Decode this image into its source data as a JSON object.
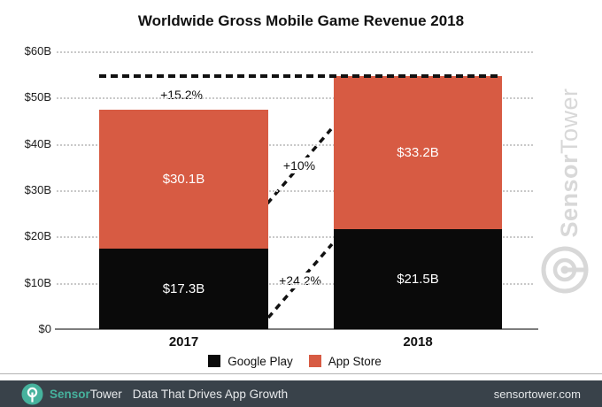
{
  "title": "Worldwide Gross Mobile Game Revenue 2018",
  "chart_data": {
    "type": "bar",
    "stacked": true,
    "title": "Worldwide Gross Mobile Game Revenue 2018",
    "categories": [
      "2017",
      "2018"
    ],
    "series": [
      {
        "name": "Google Play",
        "color": "#0a0a0a",
        "values": [
          17.3,
          21.5
        ],
        "labels": [
          "$17.3B",
          "$21.5B"
        ]
      },
      {
        "name": "App Store",
        "color": "#d75b43",
        "values": [
          30.1,
          33.2
        ],
        "labels": [
          "$30.1B",
          "$33.2B"
        ]
      }
    ],
    "totals": [
      47.4,
      54.7
    ],
    "ylim": [
      0,
      60
    ],
    "ytick_values": [
      0,
      10,
      20,
      30,
      40,
      50,
      60
    ],
    "ytick_labels": [
      "$0",
      "$10B",
      "$20B",
      "$30B",
      "$40B",
      "$50B",
      "$60B"
    ],
    "grid": "dotted horizontal",
    "reference_line": {
      "value": 54.7,
      "style": "dashed"
    },
    "annotations": [
      {
        "id": "total-growth",
        "text": "+15.2%"
      },
      {
        "id": "app-store-growth",
        "text": "+10%"
      },
      {
        "id": "google-play-growth",
        "text": "+24.2%"
      }
    ],
    "legend": {
      "position": "bottom",
      "items": [
        "Google Play",
        "App Store"
      ]
    }
  },
  "watermark": {
    "brand_bold": "Sensor",
    "brand_light": "Tower"
  },
  "footer": {
    "brand_bold": "Sensor",
    "brand_light": "Tower",
    "tagline": "Data That Drives App Growth",
    "website": "sensortower.com",
    "background": "#39424a",
    "teal": "#46b29d"
  }
}
